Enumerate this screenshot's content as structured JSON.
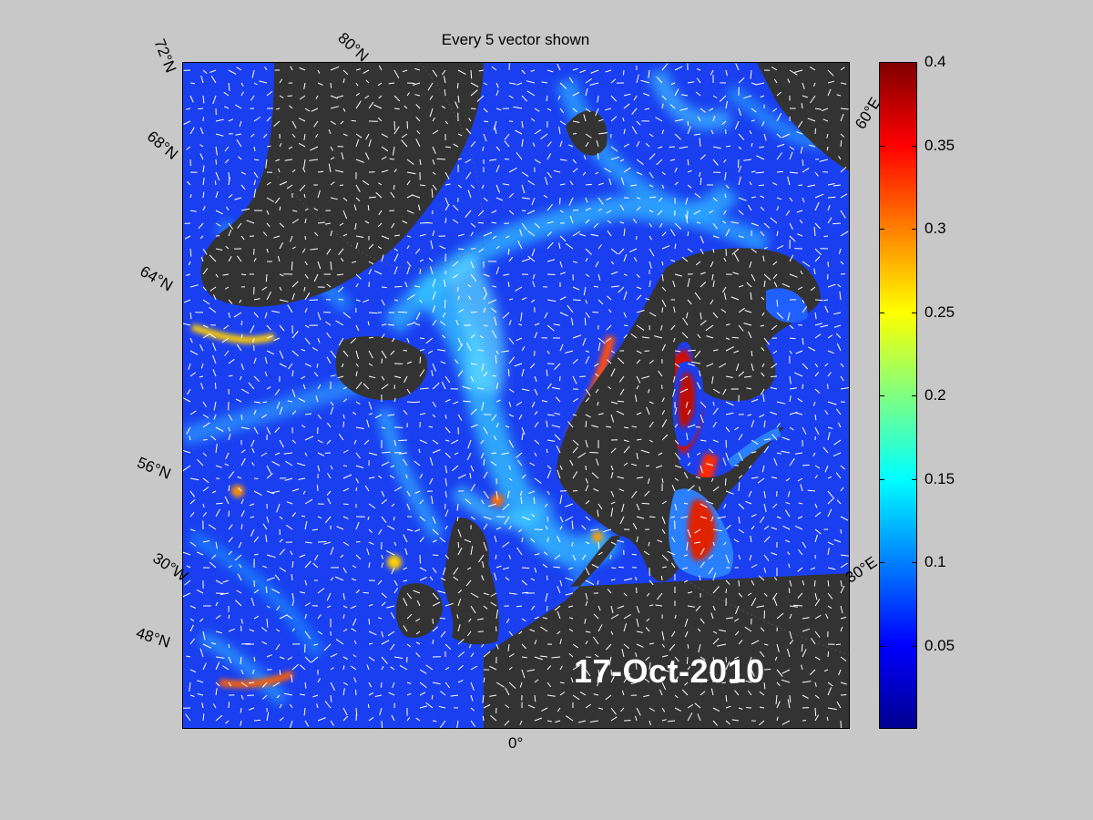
{
  "title": "Every 5 vector shown",
  "date": "17-Oct-2010",
  "lat_labels": [
    "72°N",
    "80°N",
    "68°N",
    "64°N",
    "56°N",
    "48°N"
  ],
  "lon_labels": [
    "60°E",
    "30°E",
    "30°W",
    "0°"
  ],
  "colorbar": {
    "ticks": [
      "0.4",
      "0.35",
      "0.3",
      "0.25",
      "0.2",
      "0.15",
      "0.1",
      "0.05"
    ],
    "range": [
      0,
      0.4
    ],
    "colormap": "jet"
  },
  "colors": {
    "background": "#c8c8c8",
    "land": "#333333",
    "ocean_low": "#1a3ff0",
    "ocean_mid": "#35b8ff",
    "ocean_high": "#ff2000",
    "vectors": "#ffffff"
  }
}
